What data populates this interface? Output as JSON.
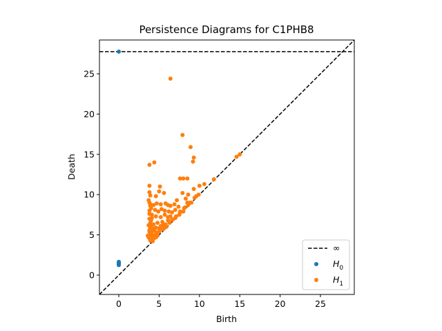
{
  "chart_data": {
    "type": "scatter",
    "title": "Persistence Diagrams for C1PHB8",
    "xlabel": "Birth",
    "ylabel": "Death",
    "xlim": [
      -2.4,
      29.2
    ],
    "ylim": [
      -2.4,
      29.2
    ],
    "xticks": [
      0,
      5,
      10,
      15,
      20,
      25
    ],
    "yticks": [
      0,
      5,
      10,
      15,
      20,
      25
    ],
    "grid": false,
    "legend_position": "lower-right",
    "infinity_line": {
      "label": "∞",
      "y": 27.75,
      "color": "#000000",
      "style": "dashed"
    },
    "diagonal": {
      "color": "#000000",
      "style": "dashed"
    },
    "series": [
      {
        "label_main": "H",
        "label_sub": "0",
        "color": "#1f77b4",
        "points": [
          [
            0,
            27.75
          ],
          [
            0,
            1.25
          ],
          [
            0,
            1.3
          ],
          [
            0,
            1.35
          ],
          [
            0,
            1.4
          ],
          [
            0,
            1.45
          ],
          [
            0,
            1.5
          ],
          [
            0,
            1.55
          ],
          [
            0,
            1.6
          ],
          [
            0,
            1.65
          ]
        ]
      },
      {
        "label_main": "H",
        "label_sub": "1",
        "color": "#ff7f0e",
        "points": [
          [
            6.4,
            24.4
          ],
          [
            7.9,
            17.4
          ],
          [
            8.9,
            15.9
          ],
          [
            9.3,
            14.6
          ],
          [
            9.2,
            14.1
          ],
          [
            15.0,
            15.0
          ],
          [
            14.6,
            14.7
          ],
          [
            4.4,
            14.0
          ],
          [
            3.8,
            13.7
          ],
          [
            7.6,
            12.0
          ],
          [
            8.0,
            12.0
          ],
          [
            8.5,
            12.0
          ],
          [
            11.8,
            11.9
          ],
          [
            10.6,
            11.3
          ],
          [
            10.0,
            11.1
          ],
          [
            3.8,
            11.1
          ],
          [
            5.1,
            11.0
          ],
          [
            9.3,
            10.7
          ],
          [
            5.0,
            10.4
          ],
          [
            5.6,
            10.2
          ],
          [
            7.9,
            10.2
          ],
          [
            8.6,
            10.0
          ],
          [
            3.8,
            10.3
          ],
          [
            3.9,
            9.9
          ],
          [
            4.6,
            9.8
          ],
          [
            8.3,
            9.5
          ],
          [
            3.7,
            9.3
          ],
          [
            3.8,
            9.0
          ],
          [
            3.9,
            8.8
          ],
          [
            4.3,
            8.7
          ],
          [
            4.7,
            8.9
          ],
          [
            5.2,
            8.8
          ],
          [
            5.8,
            8.9
          ],
          [
            6.1,
            8.7
          ],
          [
            6.4,
            8.6
          ],
          [
            6.9,
            8.8
          ],
          [
            7.4,
            8.5
          ],
          [
            7.2,
            9.3
          ],
          [
            8.5,
            9.0
          ],
          [
            9.0,
            9.0
          ],
          [
            9.6,
            9.8
          ],
          [
            9.9,
            10.0
          ],
          [
            4.0,
            8.3
          ],
          [
            4.5,
            8.1
          ],
          [
            4.9,
            7.9
          ],
          [
            5.3,
            8.2
          ],
          [
            5.7,
            8.0
          ],
          [
            6.2,
            7.9
          ],
          [
            6.6,
            7.8
          ],
          [
            7.0,
            8.1
          ],
          [
            7.6,
            7.9
          ],
          [
            8.1,
            8.3
          ],
          [
            8.6,
            8.7
          ],
          [
            3.8,
            7.6
          ],
          [
            4.1,
            7.5
          ],
          [
            4.6,
            7.3
          ],
          [
            5.2,
            7.2
          ],
          [
            5.7,
            7.5
          ],
          [
            6.1,
            7.2
          ],
          [
            6.4,
            7.3
          ],
          [
            7.0,
            7.1
          ],
          [
            7.5,
            7.5
          ],
          [
            8.0,
            7.9
          ],
          [
            3.8,
            7.0
          ],
          [
            4.0,
            6.8
          ],
          [
            3.9,
            6.5
          ],
          [
            4.3,
            6.3
          ],
          [
            4.8,
            6.5
          ],
          [
            5.4,
            6.6
          ],
          [
            5.8,
            6.3
          ],
          [
            6.1,
            6.8
          ],
          [
            6.6,
            6.9
          ],
          [
            3.7,
            6.2
          ],
          [
            3.9,
            5.9
          ],
          [
            4.2,
            5.8
          ],
          [
            4.6,
            5.9
          ],
          [
            5.0,
            5.8
          ],
          [
            5.2,
            6.1
          ],
          [
            5.5,
            6.2
          ],
          [
            3.8,
            5.6
          ],
          [
            4.1,
            5.4
          ],
          [
            4.4,
            5.5
          ],
          [
            4.7,
            5.3
          ],
          [
            5.0,
            5.4
          ],
          [
            5.4,
            5.7
          ],
          [
            3.9,
            5.2
          ],
          [
            4.1,
            5.0
          ],
          [
            4.3,
            4.8
          ],
          [
            4.5,
            5.0
          ],
          [
            4.8,
            4.9
          ],
          [
            3.6,
            4.9
          ],
          [
            3.8,
            4.6
          ],
          [
            3.9,
            4.3
          ],
          [
            4.1,
            4.5
          ],
          [
            4.2,
            4.2
          ],
          [
            4.4,
            4.6
          ],
          [
            4.6,
            4.7
          ],
          [
            5.6,
            5.8
          ],
          [
            5.9,
            6.0
          ],
          [
            6.3,
            6.5
          ],
          [
            6.7,
            6.9
          ],
          [
            7.1,
            7.3
          ],
          [
            7.6,
            7.8
          ],
          [
            8.2,
            8.4
          ],
          [
            8.8,
            9.0
          ],
          [
            9.4,
            9.6
          ],
          [
            3.7,
            4.7
          ],
          [
            3.8,
            5.4
          ],
          [
            4.0,
            6.1
          ],
          [
            4.1,
            7.1
          ],
          [
            3.8,
            8.0
          ],
          [
            3.9,
            8.6
          ]
        ]
      }
    ]
  }
}
